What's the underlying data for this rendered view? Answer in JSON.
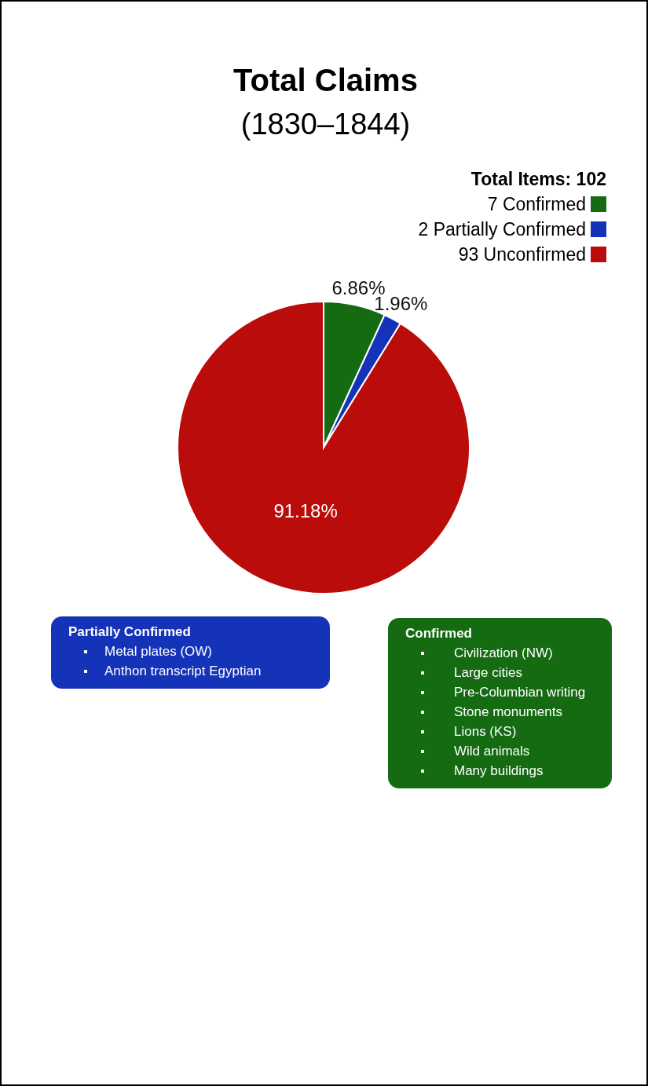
{
  "chart_data": [
    {
      "type": "pie",
      "title": "Total Claims",
      "subtitle": "(1830–1844)",
      "legend_title": "Total Items: 102",
      "legend": "top right",
      "categories": [
        "7 Confirmed",
        "2 Partially Confirmed",
        "93 Unconfirmed"
      ],
      "values": [
        6.86,
        1.96,
        91.18
      ],
      "colors": [
        "#146b12",
        "#1533b8",
        "#bb0c0c"
      ],
      "value_labels": [
        "6.86%",
        "1.96%",
        "91.18%"
      ]
    },
    {
      "type": "other",
      "title": "Partially Confirmed",
      "color": "#1533b8",
      "annotations": [
        "Metal plates (OW)",
        "Anthon transcript Egyptian"
      ]
    },
    {
      "type": "other",
      "title": "Confirmed",
      "color": "#146b12",
      "annotations": [
        "Civilization (NW)",
        "Large cities",
        "Pre-Columbian writing",
        "Stone monuments",
        "Lions (KS)",
        "Wild animals",
        "Many buildings"
      ]
    }
  ]
}
